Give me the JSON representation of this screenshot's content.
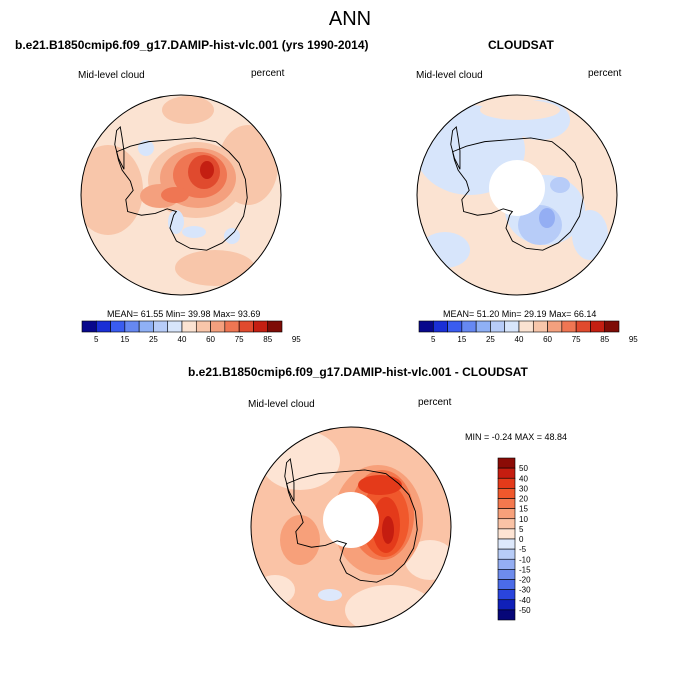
{
  "figure": {
    "title": "ANN"
  },
  "panels": [
    {
      "title": "b.e21.B1850cmip6.f09_g17.DAMIP-hist-vlc.001 (yrs 1990-2014)",
      "left_label": "Mid-level cloud",
      "right_label": "percent",
      "stats": "MEAN=  61.55  Min=  39.98  Max=  93.69",
      "mean": 61.55,
      "min": 39.98,
      "max": 93.69
    },
    {
      "title": "CLOUDSAT",
      "left_label": "Mid-level cloud",
      "right_label": "percent",
      "stats": "MEAN=  51.20  Min=  29.19  Max=  66.14",
      "mean": 51.2,
      "min": 29.19,
      "max": 66.14
    },
    {
      "title": "b.e21.B1850cmip6.f09_g17.DAMIP-hist-vlc.001 - CLOUDSAT",
      "left_label": "Mid-level cloud",
      "right_label": "percent",
      "stats": "MIN =  -0.24 MAX =  48.84",
      "min": -0.24,
      "max": 48.84
    }
  ],
  "colorbar_main": {
    "labels": [
      "5",
      "15",
      "25",
      "40",
      "60",
      "75",
      "85",
      "95"
    ],
    "colors": [
      "#08088c",
      "#1a2fd6",
      "#3a5cf0",
      "#6688f2",
      "#8fb0f5",
      "#b7ccf8",
      "#d7e5fb",
      "#fbe3d2",
      "#f8c6aa",
      "#f4a07e",
      "#ef7653",
      "#e04a2e",
      "#c41f12",
      "#7e0c06"
    ]
  },
  "colorbar_diff": {
    "labels": [
      "50",
      "40",
      "30",
      "20",
      "15",
      "10",
      "5",
      "0",
      "-5",
      "-10",
      "-15",
      "-20",
      "-30",
      "-40",
      "-50"
    ],
    "colors": [
      "#8b0b06",
      "#c51d10",
      "#e43a1a",
      "#f0582c",
      "#f4784e",
      "#f7a07a",
      "#fac3a6",
      "#fde4d4",
      "#dde8fb",
      "#b7ccf7",
      "#94aef3",
      "#6e8ced",
      "#4b6be8",
      "#2a45dd",
      "#1020b8",
      "#060678"
    ]
  }
}
